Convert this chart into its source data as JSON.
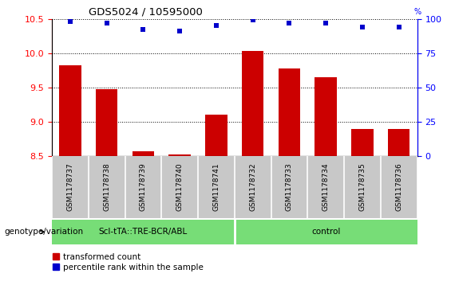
{
  "title": "GDS5024 / 10595000",
  "samples": [
    "GSM1178737",
    "GSM1178738",
    "GSM1178739",
    "GSM1178740",
    "GSM1178741",
    "GSM1178732",
    "GSM1178733",
    "GSM1178734",
    "GSM1178735",
    "GSM1178736"
  ],
  "red_values": [
    9.82,
    9.47,
    8.57,
    8.52,
    9.1,
    10.03,
    9.78,
    9.65,
    8.9,
    8.9
  ],
  "blue_values": [
    98,
    97,
    92,
    91,
    95,
    99,
    97,
    97,
    94,
    94
  ],
  "ylim_left": [
    8.5,
    10.5
  ],
  "ylim_right": [
    0,
    100
  ],
  "yticks_left": [
    8.5,
    9.0,
    9.5,
    10.0,
    10.5
  ],
  "yticks_right": [
    0,
    25,
    50,
    75,
    100
  ],
  "group1_label": "Scl-tTA::TRE-BCR/ABL",
  "group2_label": "control",
  "group1_indices": [
    0,
    1,
    2,
    3,
    4
  ],
  "group2_indices": [
    5,
    6,
    7,
    8,
    9
  ],
  "group_color": "#77dd77",
  "bar_color": "#cc0000",
  "dot_color": "#0000cc",
  "bg_color": "#c8c8c8",
  "legend_red_label": "transformed count",
  "legend_blue_label": "percentile rank within the sample",
  "genotype_label": "genotype/variation"
}
